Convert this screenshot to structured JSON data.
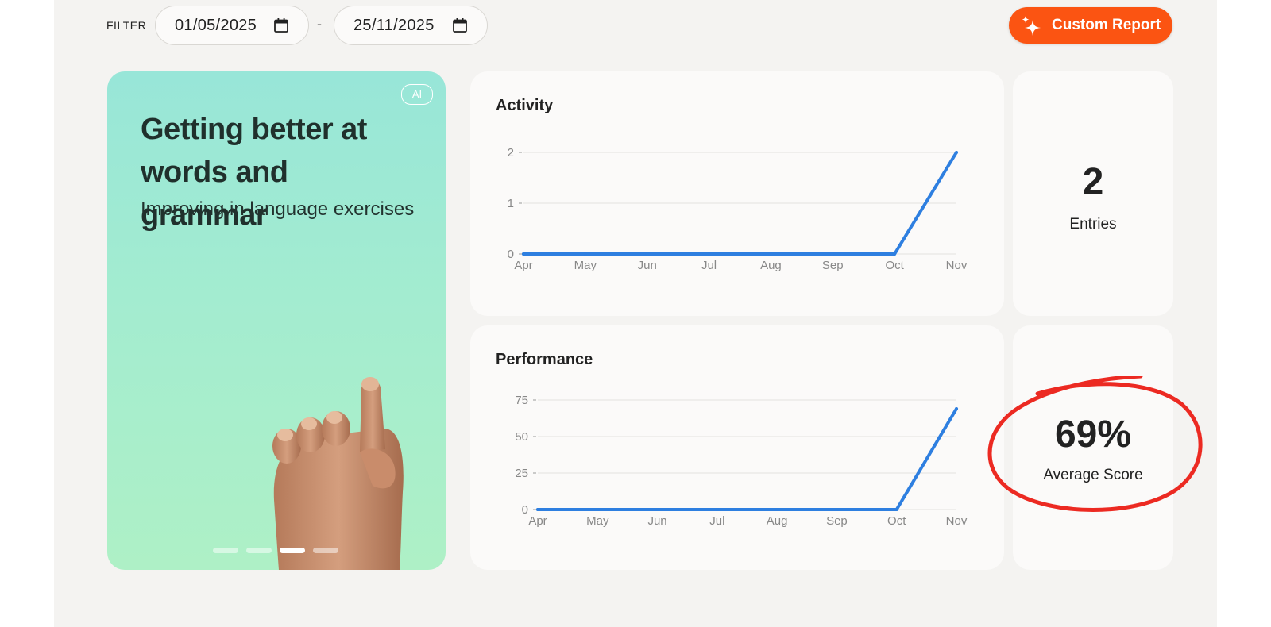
{
  "filter": {
    "label": "FILTER",
    "from": "01/05/2025",
    "to": "25/11/2025",
    "separator": "-"
  },
  "report_button": {
    "label": "Custom Report",
    "icon": "sparkles-icon"
  },
  "promo": {
    "badge": "AI",
    "title": "Getting better at words and grammar",
    "subtitle": "Improving in language exercises",
    "carousel_total": 4,
    "carousel_active": 3
  },
  "activity": {
    "title": "Activity"
  },
  "performance": {
    "title": "Performance"
  },
  "stats": {
    "entries": {
      "value": "2",
      "label": "Entries"
    },
    "average": {
      "value": "69%",
      "label": "Average Score"
    }
  },
  "colors": {
    "accent": "#fb5412",
    "line": "#2e7fe0",
    "annotation": "#ec2a22"
  },
  "chart_data": [
    {
      "type": "line",
      "title": "Activity",
      "x": [
        "Apr",
        "May",
        "Jun",
        "Jul",
        "Aug",
        "Sep",
        "Oct",
        "Nov"
      ],
      "values": [
        0,
        0,
        0,
        0,
        0,
        0,
        0,
        2
      ],
      "yticks": [
        0,
        1,
        2
      ],
      "ylim": [
        0,
        2
      ],
      "grid": true
    },
    {
      "type": "line",
      "title": "Performance",
      "x": [
        "Apr",
        "May",
        "Jun",
        "Jul",
        "Aug",
        "Sep",
        "Oct",
        "Nov"
      ],
      "values": [
        0,
        0,
        0,
        0,
        0,
        0,
        0,
        69
      ],
      "yticks": [
        0,
        25,
        50,
        75
      ],
      "ylim": [
        0,
        75
      ],
      "grid": true
    }
  ]
}
